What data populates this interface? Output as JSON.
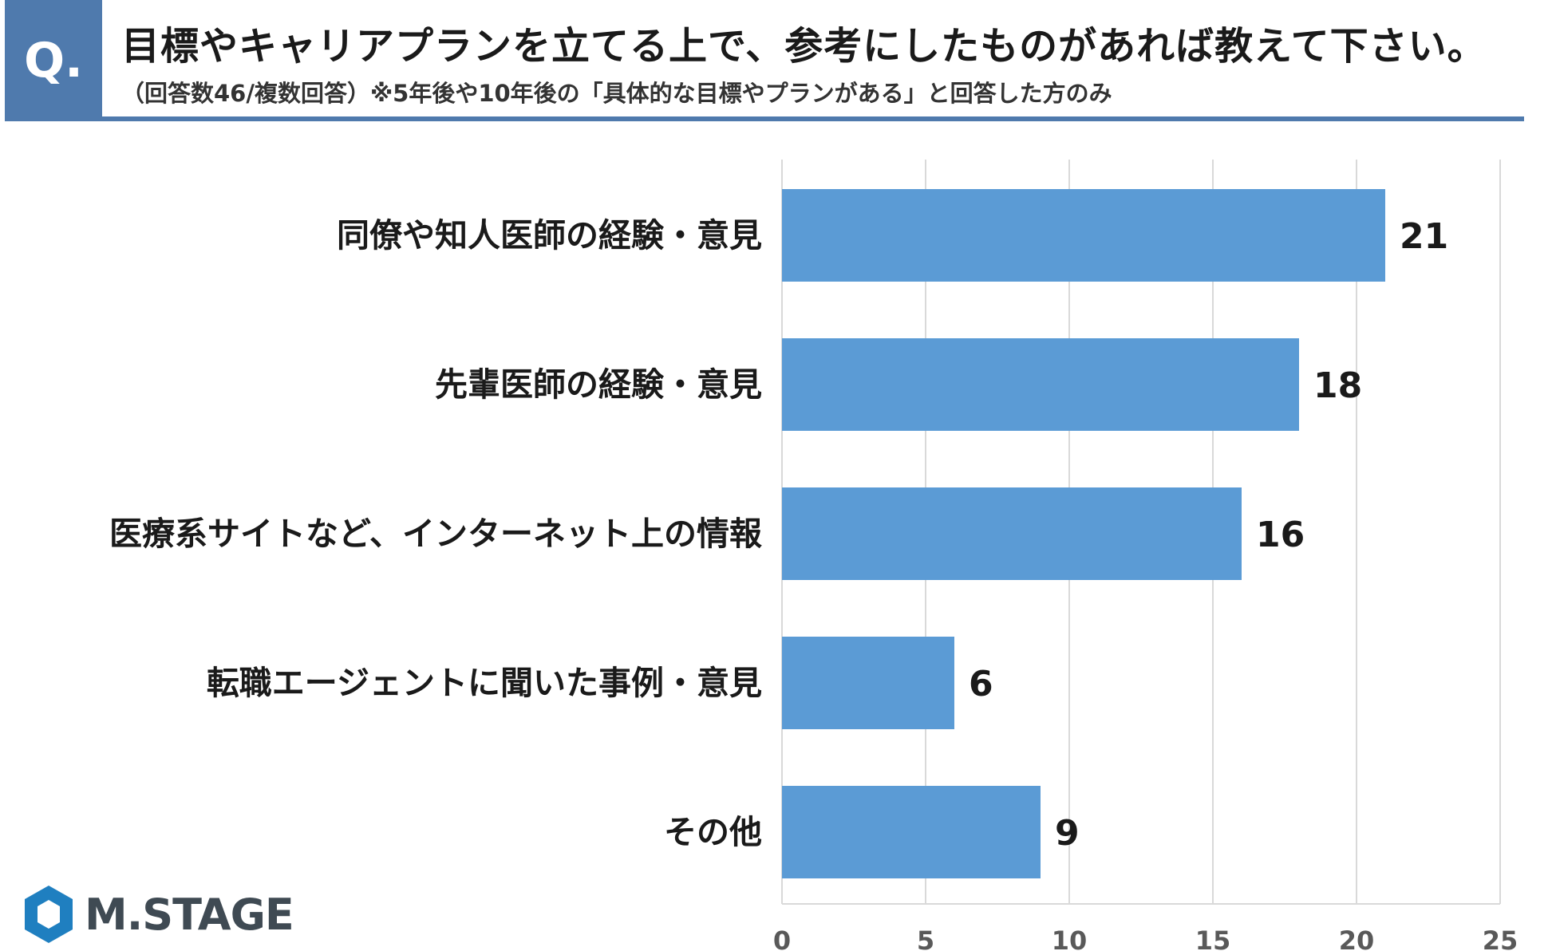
{
  "header": {
    "badge": "Q.",
    "title": "目標やキャリアプランを立てる上で、参考にしたものがあれば教えて下さい。",
    "subtitle": "（回答数46/複数回答）※5年後や10年後の「具体的な目標やプランがある」と回答した方のみ",
    "accent_color": "#4f7aad"
  },
  "chart_data": {
    "type": "bar",
    "orientation": "horizontal",
    "categories": [
      "同僚や知人医師の経験・意見",
      "先輩医師の経験・意見",
      "医療系サイトなど、インターネット上の情報",
      "転職エージェントに聞いた事例・意見",
      "その他"
    ],
    "values": [
      21,
      18,
      16,
      6,
      9
    ],
    "xlim": [
      0,
      25
    ],
    "xticks": [
      "0",
      "5",
      "10",
      "15",
      "20",
      "25"
    ],
    "grid": true,
    "bar_color": "#5b9bd5",
    "data_labels": true
  },
  "logo": {
    "text": "M.STAGE",
    "mark_color": "#1f7fc0",
    "text_color": "#3f4a53"
  }
}
